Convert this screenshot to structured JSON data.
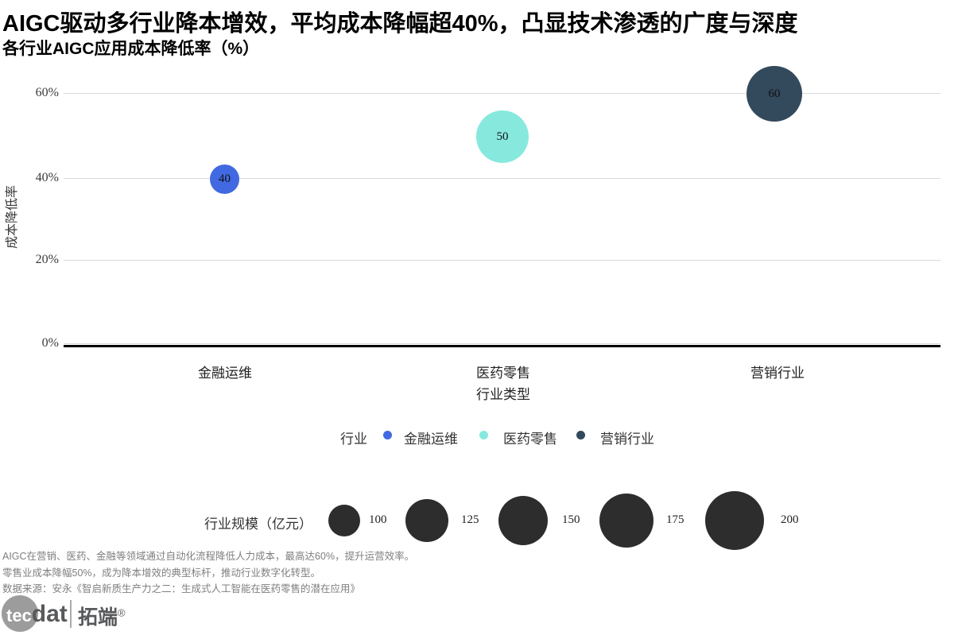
{
  "header": {
    "title": "AIGC驱动多行业降本增效，平均成本降幅超40%，凸显技术渗透的广度与深度",
    "subtitle": "各行业AIGC应用成本降低率（%）"
  },
  "chart_data": {
    "type": "scatter",
    "subtype": "bubble",
    "categories": [
      "金融运维",
      "医药零售",
      "营销行业"
    ],
    "x_label": "行业类型",
    "y_label": "成本降低率",
    "y_ticks_top_to_bottom": [
      "60%",
      "40%",
      "20%",
      "0%"
    ],
    "ylim": [
      0,
      65
    ],
    "grid": "horizontal",
    "series": [
      {
        "category": "金融运维",
        "cost_reduction_pct": 40,
        "point_label": "40",
        "industry_scale": 100,
        "color": "#4169e1"
      },
      {
        "category": "医药零售",
        "cost_reduction_pct": 50,
        "point_label": "50",
        "industry_scale": 175,
        "color": "#87e9de"
      },
      {
        "category": "营销行业",
        "cost_reduction_pct": 60,
        "point_label": "60",
        "industry_scale": 200,
        "color": "#33495c"
      }
    ],
    "legend": {
      "position": "bottom",
      "title": "行业",
      "entries": [
        {
          "label": "金融运维",
          "color": "#4169e1"
        },
        {
          "label": "医药零售",
          "color": "#87e9de"
        },
        {
          "label": "营销行业",
          "color": "#33495c"
        }
      ]
    },
    "size_legend": {
      "title": "行业规模（亿元）",
      "values": [
        "100",
        "125",
        "150",
        "175",
        "200"
      ],
      "color": "#2d2d2d"
    }
  },
  "footnotes": [
    "AIGC在营销、医药、金融等领域通过自动化流程降低人力成本，最高达60%，提升运营效率。",
    "零售业成本降幅50%，成为降本增效的典型标杆，推动行业数字化转型。",
    "数据来源：安永《智启新质生产力之二：生成式人工智能在医药零售的潜在应用》"
  ],
  "logo": {
    "brand_part1": "tec",
    "brand_part2": "dat",
    "cjk_name": "拓端",
    "registered_mark": "®"
  }
}
